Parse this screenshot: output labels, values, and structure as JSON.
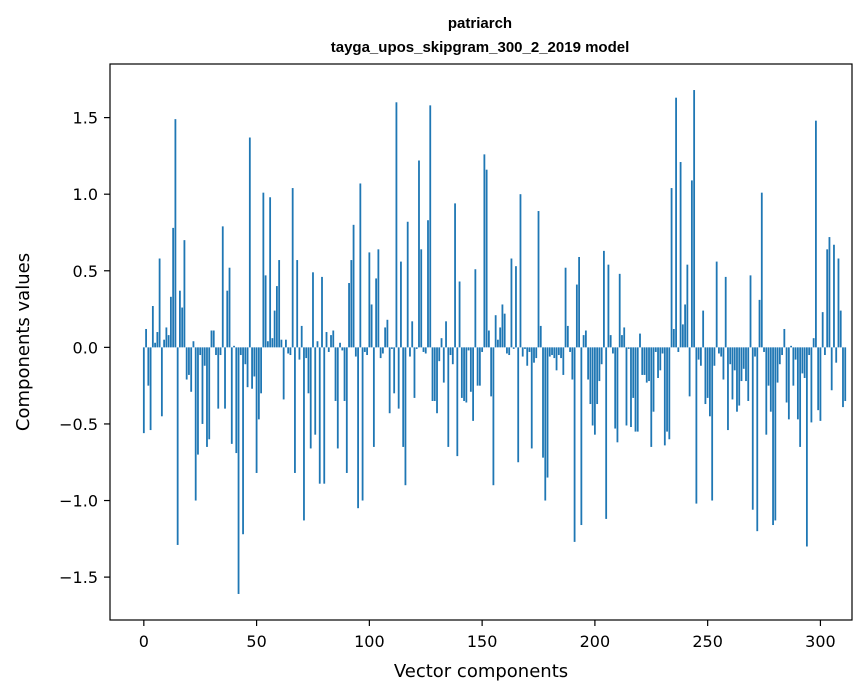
{
  "chart_data": {
    "type": "bar",
    "title_line1": "patriarch",
    "title_line2": "tayga_upos_skipgram_300_2_2019 model",
    "xlabel": "Vector components",
    "ylabel": "Components values",
    "xlim": [
      -15,
      314
    ],
    "ylim": [
      -1.78,
      1.85
    ],
    "xticks": [
      0,
      50,
      100,
      150,
      200,
      250,
      300
    ],
    "yticks": [
      -1.5,
      -1.0,
      -0.5,
      0.0,
      0.5,
      1.0,
      1.5
    ],
    "ytick_labels": [
      "−1.5",
      "−1.0",
      "−0.5",
      "0.0",
      "0.5",
      "1.0",
      "1.5"
    ],
    "bar_color": "#1f77b4",
    "grid": false,
    "legend": "none",
    "values": [
      -0.56,
      0.12,
      -0.25,
      -0.54,
      0.27,
      0.03,
      0.1,
      0.58,
      -0.45,
      0.05,
      0.13,
      0.08,
      0.33,
      0.78,
      1.49,
      -1.29,
      0.37,
      0.26,
      0.7,
      -0.21,
      -0.18,
      -0.29,
      0.04,
      -1.0,
      -0.7,
      -0.05,
      -0.5,
      -0.12,
      -0.65,
      -0.6,
      0.11,
      0.11,
      -0.05,
      -0.4,
      -0.05,
      0.79,
      -0.4,
      0.37,
      0.52,
      -0.63,
      0.01,
      -0.69,
      -1.61,
      -0.05,
      -1.22,
      -0.11,
      -0.26,
      1.37,
      -0.27,
      -0.19,
      -0.82,
      -0.47,
      -0.3,
      1.01,
      0.47,
      0.04,
      0.98,
      0.06,
      0.24,
      0.4,
      0.57,
      0.05,
      -0.34,
      0.05,
      -0.04,
      -0.05,
      1.04,
      -0.82,
      0.57,
      -0.08,
      0.14,
      -1.13,
      -0.07,
      -0.3,
      -0.66,
      0.49,
      -0.57,
      0.04,
      -0.89,
      0.46,
      -0.89,
      0.1,
      -0.03,
      0.08,
      0.11,
      -0.35,
      -0.66,
      0.03,
      -0.02,
      -0.35,
      -0.82,
      0.42,
      0.57,
      0.8,
      -0.06,
      -1.05,
      1.07,
      -1.0,
      -0.03,
      -0.05,
      0.62,
      0.28,
      -0.65,
      0.45,
      0.64,
      -0.07,
      -0.04,
      0.13,
      0.18,
      -0.43,
      -0.01,
      -0.3,
      1.6,
      -0.4,
      0.56,
      -0.65,
      -0.9,
      0.82,
      -0.06,
      0.17,
      -0.33,
      -0.01,
      1.22,
      0.64,
      -0.03,
      -0.04,
      0.83,
      1.58,
      -0.35,
      -0.35,
      -0.43,
      -0.09,
      0.06,
      -0.23,
      0.17,
      -0.65,
      -0.05,
      -0.11,
      0.94,
      -0.71,
      0.43,
      -0.33,
      -0.35,
      -0.36,
      -0.02,
      -0.29,
      -0.48,
      0.51,
      -0.25,
      -0.25,
      -0.03,
      1.26,
      1.16,
      0.11,
      -0.32,
      -0.9,
      0.21,
      0.05,
      0.13,
      0.28,
      0.22,
      -0.04,
      -0.05,
      0.58,
      -0.01,
      0.53,
      -0.75,
      1.0,
      -0.06,
      -0.01,
      -0.12,
      -0.03,
      -0.66,
      -0.1,
      -0.07,
      0.89,
      0.14,
      -0.72,
      -1.0,
      -0.85,
      -0.06,
      -0.05,
      -0.07,
      -0.15,
      -0.05,
      -0.07,
      -0.18,
      0.52,
      0.14,
      -0.03,
      -0.21,
      -1.27,
      0.41,
      0.59,
      -1.16,
      0.08,
      0.11,
      -0.21,
      -0.37,
      -0.51,
      -0.57,
      -0.37,
      -0.22,
      -0.11,
      0.63,
      -1.12,
      0.54,
      0.08,
      -0.04,
      -0.53,
      -0.62,
      0.48,
      0.08,
      0.13,
      -0.51,
      -0.01,
      -0.52,
      -0.33,
      -0.55,
      -0.55,
      0.09,
      -0.18,
      -0.18,
      -0.23,
      -0.22,
      -0.65,
      -0.42,
      -0.03,
      -0.2,
      -0.15,
      -0.04,
      -0.64,
      -0.55,
      -0.6,
      1.04,
      0.12,
      1.63,
      -0.03,
      1.21,
      0.15,
      0.28,
      0.54,
      -0.32,
      1.09,
      1.68,
      -1.02,
      -0.08,
      -0.12,
      0.24,
      -0.37,
      -0.33,
      -0.45,
      -1.0,
      -0.12,
      0.56,
      -0.04,
      -0.06,
      -0.21,
      0.46,
      -0.54,
      -0.11,
      -0.34,
      -0.15,
      -0.42,
      -0.38,
      -0.22,
      -0.14,
      -0.22,
      -0.35,
      0.47,
      -1.06,
      -0.06,
      -1.2,
      0.31,
      1.01,
      -0.03,
      -0.57,
      -0.25,
      -0.42,
      -1.16,
      -1.13,
      -0.23,
      -0.11,
      -0.05,
      0.12,
      -0.36,
      -0.47,
      0.01,
      -0.25,
      -0.08,
      -0.47,
      -0.65,
      -0.17,
      -0.2,
      -1.3,
      -0.05,
      -0.49,
      0.06,
      1.48,
      -0.41,
      -0.48,
      0.23,
      -0.05,
      0.64,
      0.72,
      -0.28,
      0.67,
      -0.1,
      0.58,
      0.24,
      -0.39,
      -0.35
    ]
  }
}
